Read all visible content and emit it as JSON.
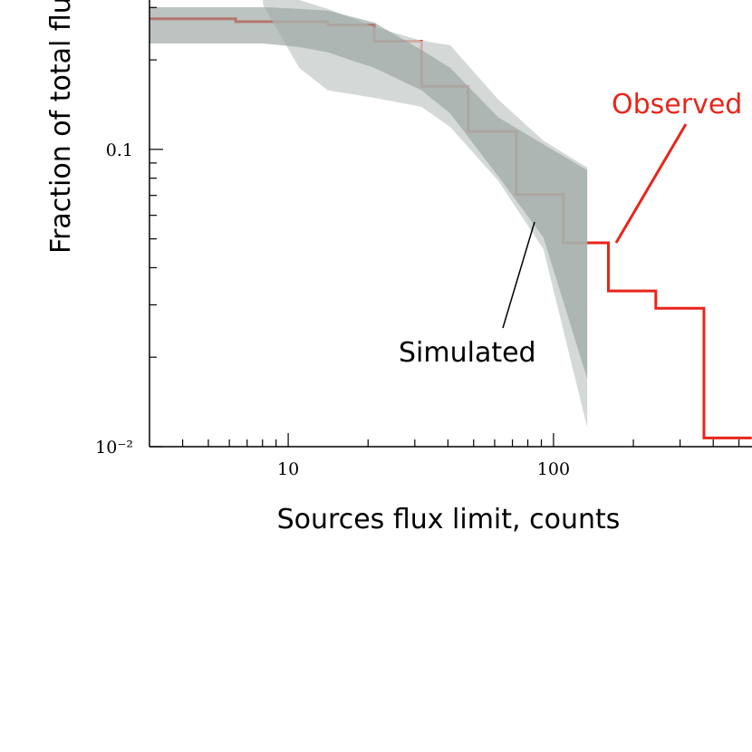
{
  "chart_data": {
    "type": "step",
    "xlabel": "Sources flux limit, counts",
    "ylabel": "Fraction of total flux",
    "xscale": "log",
    "yscale": "log",
    "xlim": [
      3,
      560
    ],
    "ylim": [
      0.01,
      0.318
    ],
    "xticks": [
      10,
      100
    ],
    "xminor": [
      4,
      5,
      6,
      7,
      8,
      9,
      20,
      30,
      40,
      50,
      60,
      70,
      80,
      90,
      200,
      300,
      400,
      500
    ],
    "yticks": [
      {
        "value": 0.01,
        "label": "10⁻²"
      },
      0.1
    ],
    "yminor": [
      0.02,
      0.03,
      0.04,
      0.05,
      0.06,
      0.07,
      0.08,
      0.09,
      0.2,
      0.3
    ],
    "series": [
      {
        "name": "Observed",
        "color": "#e8251b",
        "bins": [
          3.0,
          6.34,
          14.1,
          21.1,
          31.8,
          47.7,
          72.4,
          109,
          161,
          243,
          369,
          559
        ],
        "values": [
          0.275,
          0.269,
          0.262,
          0.231,
          0.163,
          0.115,
          0.0705,
          0.0485,
          0.0334,
          0.0292,
          0.0107
        ]
      }
    ],
    "bands": [
      {
        "color": "#c9d0ce",
        "opacity": 0.8,
        "x": [
          8.03,
          11.0,
          14.1,
          21.1,
          31.8,
          40.8,
          62.0,
          91.6,
          134
        ],
        "upper": [
          0.318,
          0.318,
          0.297,
          0.258,
          0.232,
          0.224,
          0.147,
          0.107,
          0.0869
        ],
        "lower": [
          0.307,
          0.188,
          0.158,
          0.149,
          0.139,
          0.119,
          0.0782,
          0.0462,
          0.0116
        ]
      },
      {
        "color": "#98a39e",
        "opacity": 0.65,
        "x": [
          3.0,
          8.03,
          11.0,
          14.1,
          21.1,
          31.8,
          40.8,
          62.0,
          91.6,
          134
        ],
        "upper": [
          0.301,
          0.301,
          0.297,
          0.293,
          0.267,
          0.216,
          0.188,
          0.128,
          0.104,
          0.0851
        ],
        "lower": [
          0.227,
          0.227,
          0.221,
          0.212,
          0.188,
          0.158,
          0.132,
          0.081,
          0.0506,
          0.0169
        ]
      }
    ],
    "annotations": [
      {
        "text": "Simulated",
        "color": "#000000"
      }
    ]
  }
}
